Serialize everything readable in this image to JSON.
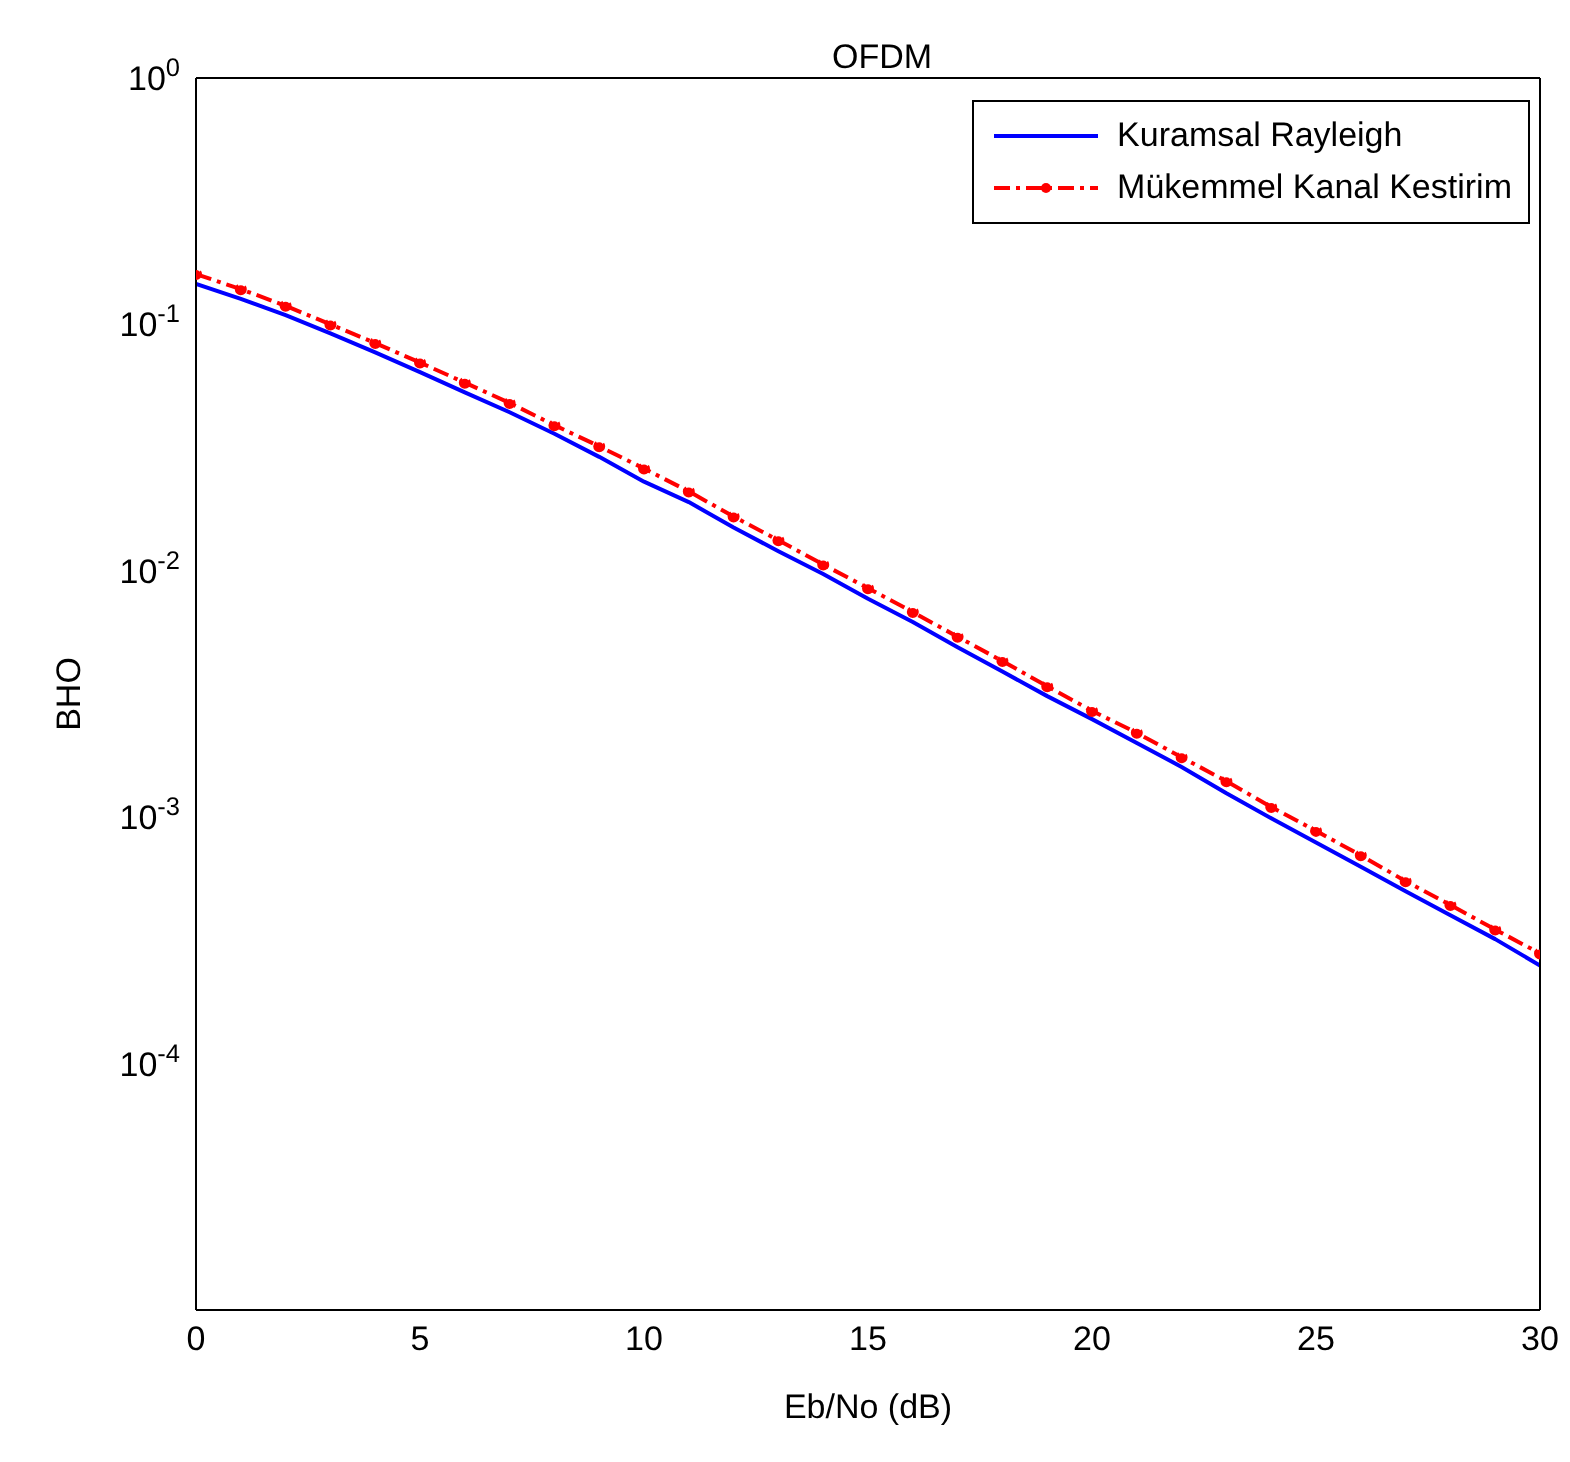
{
  "chart_data": {
    "type": "line",
    "title": "OFDM",
    "xlabel": "Eb/No (dB)",
    "ylabel": "BHO",
    "log": "y",
    "x": [
      0,
      1,
      2,
      3,
      4,
      5,
      6,
      7,
      8,
      9,
      10,
      11,
      12,
      13,
      14,
      15,
      16,
      17,
      18,
      19,
      20,
      21,
      22,
      23,
      24,
      25,
      26,
      27,
      28,
      29,
      30
    ],
    "xlim": [
      0,
      30
    ],
    "xticks": [
      0,
      5,
      10,
      15,
      20,
      25,
      30
    ],
    "ylim": [
      1e-05,
      1
    ],
    "yticks": [
      {
        "value": 1e-05,
        "label": null
      },
      {
        "value": 0.0001,
        "label": "10$^{-4}$"
      },
      {
        "value": 0.001,
        "label": "10$^{-3}$"
      },
      {
        "value": 0.01,
        "label": "10$^{-2}$"
      },
      {
        "value": 0.1,
        "label": "10$^{-1}$"
      },
      {
        "value": 1,
        "label": "10$^{0}$"
      }
    ],
    "legend": "top right",
    "series": [
      {
        "name": "Kuramsal Rayleigh",
        "color": "#0000ff",
        "line_style": "solid",
        "marker": "none",
        "values": [
          0.146,
          0.127,
          0.109,
          0.092,
          0.077,
          0.064,
          0.053,
          0.044,
          0.036,
          0.029,
          0.023,
          0.019,
          0.015,
          0.012,
          0.0097,
          0.0077,
          0.0062,
          0.0049,
          0.0039,
          0.0031,
          0.0025,
          0.002,
          0.0016,
          0.00125,
          0.00099,
          0.00079,
          0.00063,
          0.0005,
          0.0004,
          0.00032,
          0.00025
        ]
      },
      {
        "name": "Mükemmel Kanal Kestirim",
        "color": "#ff0000",
        "line_style": "dashdot",
        "marker": "circle",
        "values": [
          0.16,
          0.139,
          0.119,
          0.1,
          0.084,
          0.07,
          0.058,
          0.048,
          0.039,
          0.032,
          0.026,
          0.021,
          0.0166,
          0.0133,
          0.0106,
          0.0085,
          0.0068,
          0.0054,
          0.0043,
          0.0034,
          0.0027,
          0.0022,
          0.00175,
          0.0014,
          0.0011,
          0.00088,
          0.0007,
          0.00055,
          0.00044,
          0.00035,
          0.00028
        ]
      }
    ]
  }
}
